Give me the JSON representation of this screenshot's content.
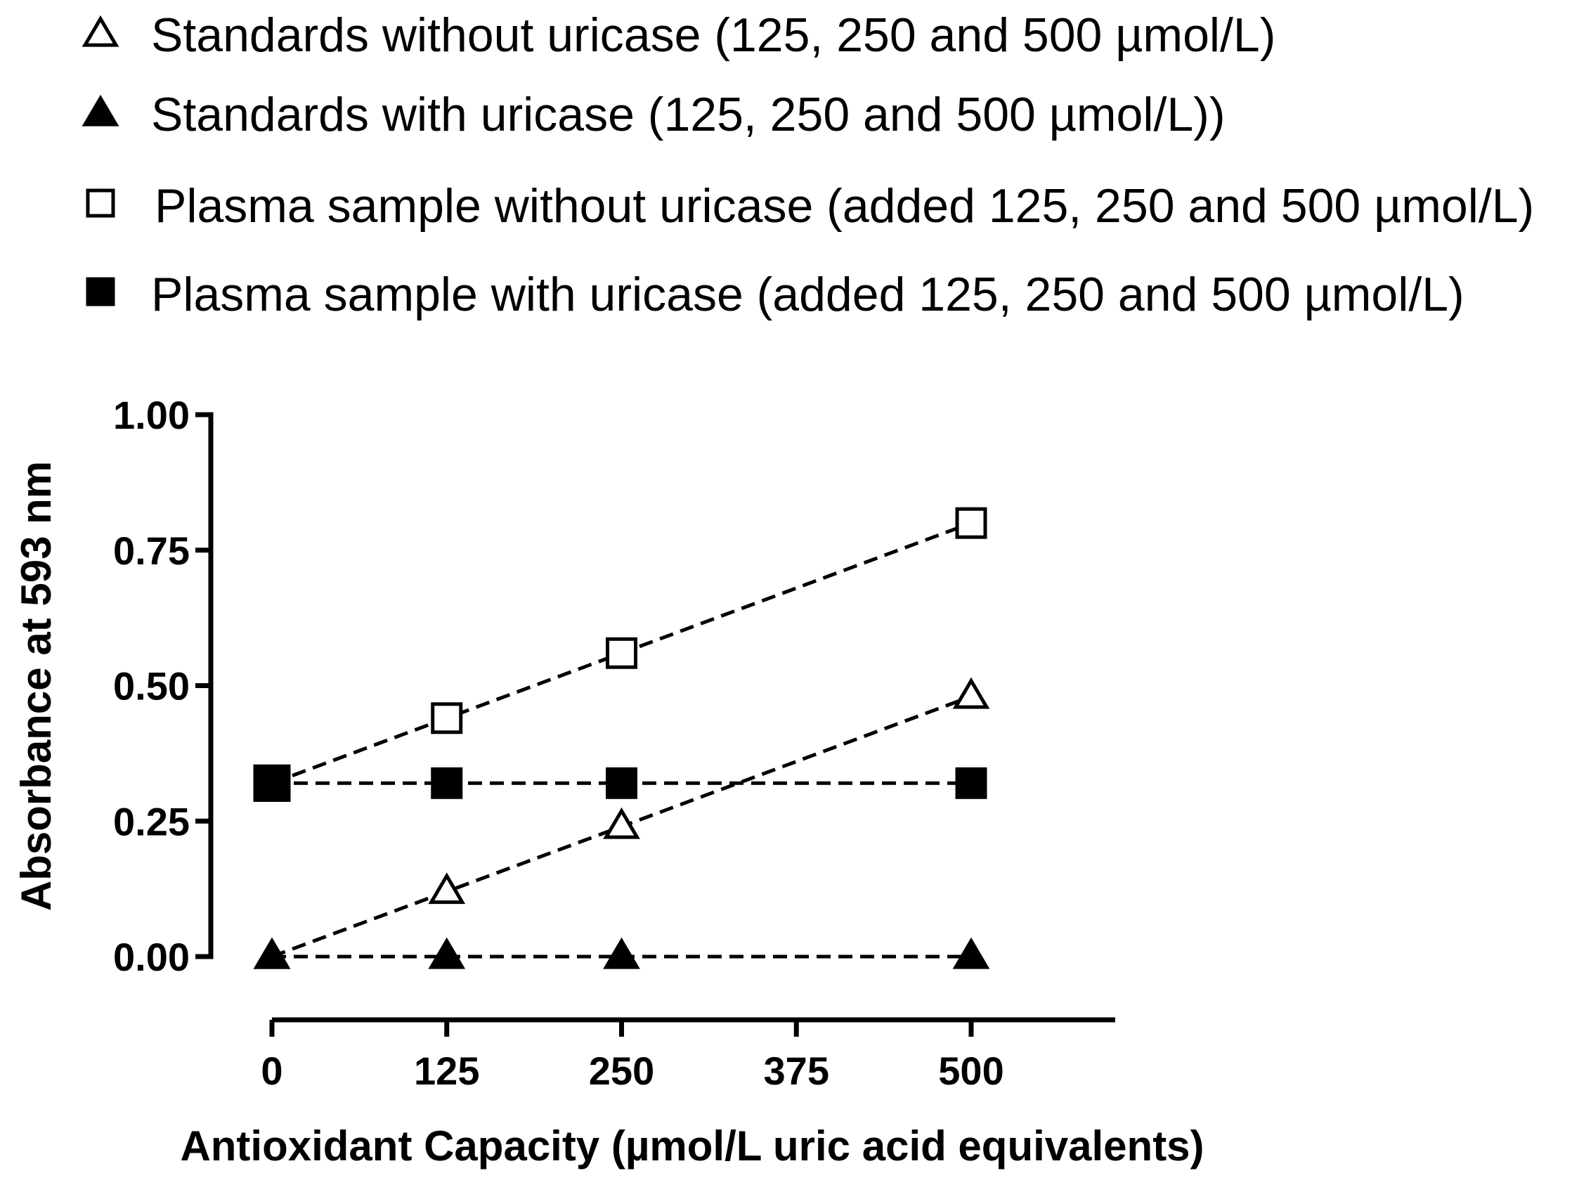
{
  "chart_data": {
    "type": "line",
    "xlabel": "Antioxidant Capacity (µmol/L uric acid equivalents)",
    "ylabel": "Absorbance at 593 nm",
    "xlim": [
      0,
      500
    ],
    "ylim": [
      0,
      1.0
    ],
    "x_ticks": [
      "0",
      "125",
      "250",
      "375",
      "500"
    ],
    "y_ticks": [
      "0.00",
      "0.25",
      "0.50",
      "0.75",
      "1.00"
    ],
    "grid": false,
    "legend_position": "top",
    "x": [
      0,
      125,
      250,
      500
    ],
    "series": [
      {
        "name": "Standards without uricase (125, 250 and 500 µmol/L)",
        "marker": "triangle-open",
        "values": [
          0.0,
          0.12,
          0.24,
          0.48
        ]
      },
      {
        "name": "Standards with uricase (125, 250 and 500 µmol/L))",
        "marker": "triangle-filled",
        "values": [
          0.0,
          0.0,
          0.0,
          0.0
        ]
      },
      {
        "name": "Plasma sample without uricase (added 125, 250 and 500 µmol/L)",
        "marker": "square-open",
        "values": [
          0.32,
          0.44,
          0.56,
          0.8
        ]
      },
      {
        "name": "Plasma sample with uricase (added 125, 250 and 500 µmol/L)",
        "marker": "square-filled",
        "values": [
          0.32,
          0.32,
          0.32,
          0.32
        ]
      }
    ]
  }
}
